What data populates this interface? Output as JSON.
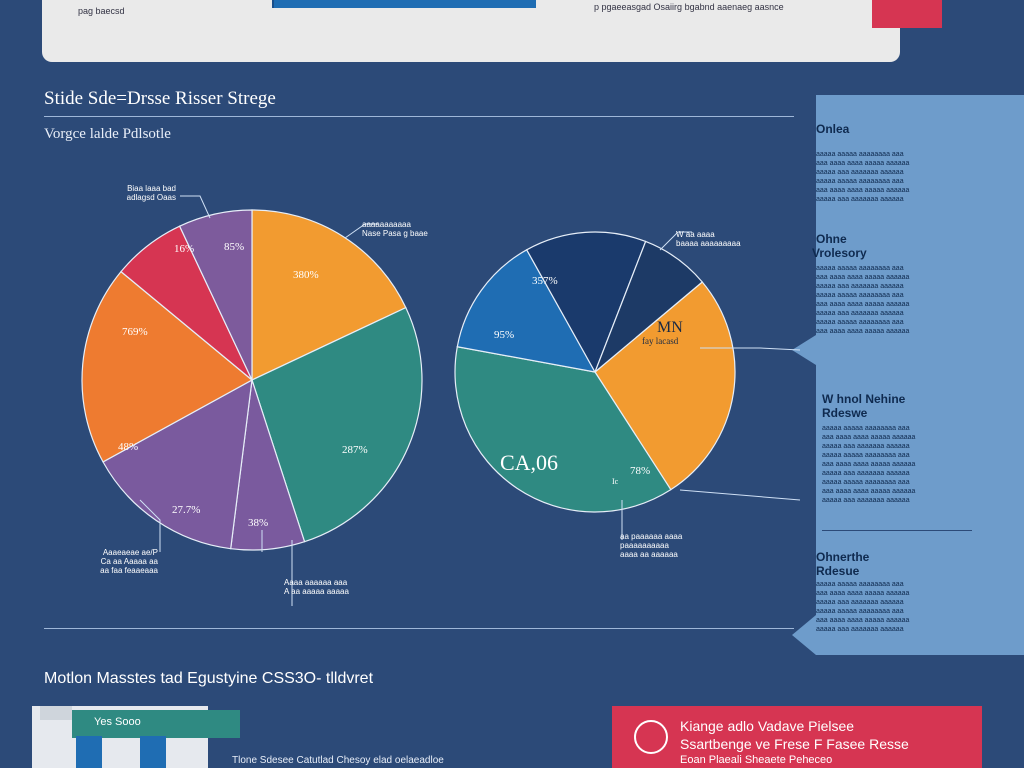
{
  "header": {
    "tiny_left": "pag baecsd",
    "tiny_center": "p pgaeeasgad Osaiirg bgabnd aaenaeg aasnce",
    "title": "Stide Sde=Drsse Risser Strege",
    "subtitle": "Vorgce lalde Pdlsotle"
  },
  "chart_data": [
    {
      "type": "pie",
      "title": "",
      "slices": [
        {
          "label": "380%",
          "value": 18,
          "color": "#f29b30"
        },
        {
          "label": "287%",
          "value": 27,
          "color": "#2f8a82"
        },
        {
          "label": "38%",
          "value": 7,
          "color": "#7a5a9e"
        },
        {
          "label": "27.7%",
          "value": 15,
          "color": "#7a5a9e"
        },
        {
          "label": "48%",
          "value": 0,
          "color": "#7a5a9e"
        },
        {
          "label": "769%",
          "value": 19,
          "color": "#ee7b30"
        },
        {
          "label": "16%",
          "value": 7,
          "color": "#d63552"
        },
        {
          "label": "85%",
          "value": 7,
          "color": "#7d5b9c"
        }
      ]
    },
    {
      "type": "pie",
      "title": "",
      "slices": [
        {
          "label": "MN",
          "value": 27,
          "color": "#f29b30"
        },
        {
          "label": "78%",
          "value": 37,
          "color": "#2f8a82"
        },
        {
          "label": "95%",
          "value": 14,
          "color": "#1f6db3"
        },
        {
          "label": "357%",
          "value": 14,
          "color": "#1a3a6c"
        },
        {
          "label": "",
          "value": 8,
          "color": "#1d3a66"
        }
      ],
      "center_label": "CA,06",
      "sub_label": "fay lacasd"
    }
  ],
  "notes": {
    "n1": "Biaa laaa bad",
    "n2": "adlagsd Oaas",
    "n3": "aaaaaaaaaaa",
    "n4": "Nase Pasa g baae",
    "n5": "Aaaeaeae ae/P",
    "n6": "Ca aa Aaaaa aa",
    "n7": "aa faa feaaeaaa",
    "n8": "Aaaa aaaaaa aaa",
    "n9": "A aa aaaaa aaaaa",
    "n10": "W aa aaaa",
    "n11": "baaaa aaaaaaaaa",
    "n12": "aa paaaaaa aaaa",
    "n13": "paaaaaaaaaa",
    "n14": "aaaa aa aaaaaa"
  },
  "side": {
    "s1_title": "Onlea",
    "s2_title": "Ohne",
    "s2_sub": "Vrolesory",
    "s3_title": "W hnol Nehine",
    "s3_sub": "Rdeswe",
    "s4_title": "Ohnerthe",
    "s4_sub": "Rdesue",
    "line_a": "aaaaa aaaaa aaaaaaaa aaa",
    "line_b": "aaa aaaa aaaa aaaaa aaaaaa",
    "line_c": "aaaaa aaa aaaaaaa aaaaaa"
  },
  "bottom": {
    "title": "Motlon Masstes tad Egustyine  CSS3O- tlldvret",
    "card_left_label": "Yes Sooo",
    "note": "Tlone Sdesee Catutlad Chesoy elad oelaeadloe",
    "card_right_l1": "Kiange adlo Vadave Pielsee",
    "card_right_l2": "Ssartbenge ve Frese F Fasee Resse",
    "card_right_l3": "Eoan Plaeali Sheaete Peheceo"
  }
}
